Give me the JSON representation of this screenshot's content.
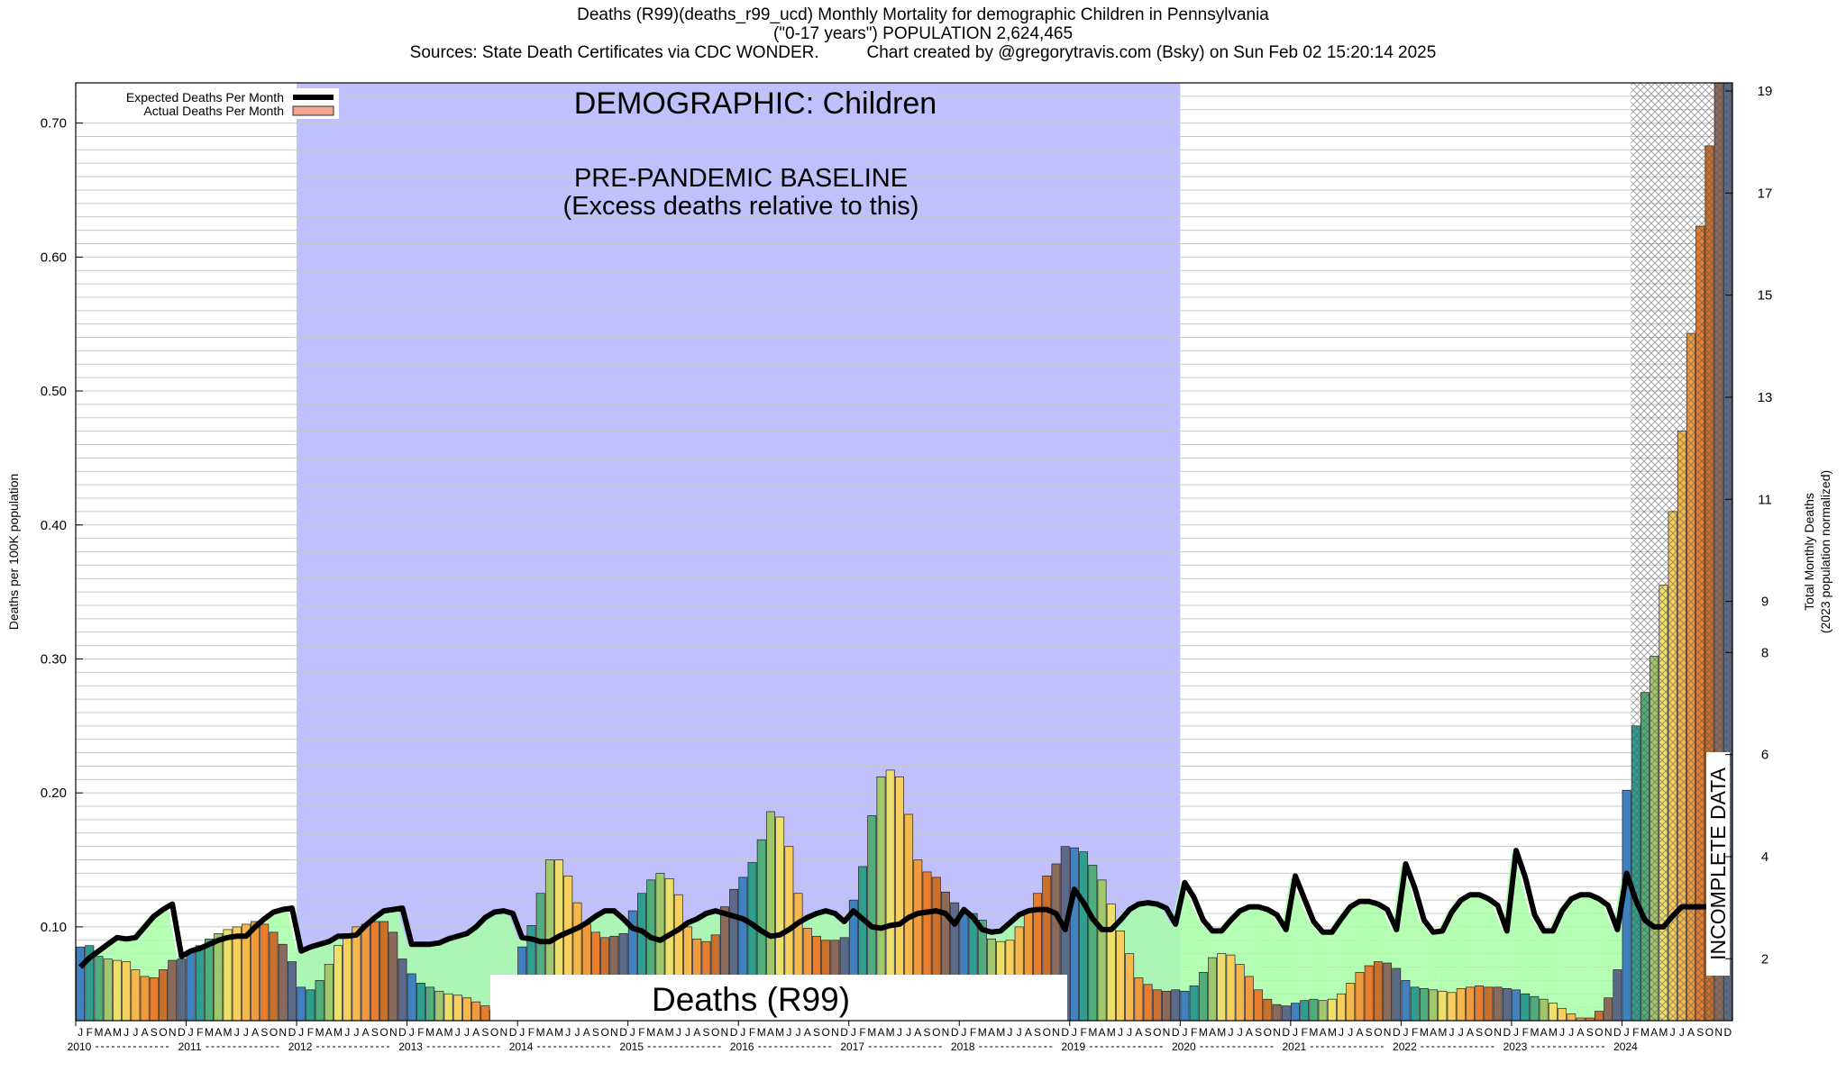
{
  "header": {
    "line1": "Deaths (R99)(deaths_r99_ucd) Monthly Mortality for demographic Children in Pennsylvania",
    "line2": "(\"0-17 years\") POPULATION 2,624,465",
    "line3_left": "Sources: State Death Certificates via CDC WONDER.",
    "line3_right": "Chart created by @gregorytravis.com (Bsky) on Sun Feb 02 15:20:14 2025"
  },
  "chart_data": {
    "type": "bar",
    "ylabel": "Deaths per 100K population",
    "y2label_line1": "Total Monthly Deaths",
    "y2label_line2": "(2023 population normalized)",
    "ylim": [
      0.03,
      0.73
    ],
    "yticks": [
      "0.10",
      "0.20",
      "0.30",
      "0.40",
      "0.50",
      "0.60",
      "0.70"
    ],
    "y2ticks": [
      "2",
      "4",
      "6",
      "8",
      "9",
      "11",
      "13",
      "15",
      "17",
      "19"
    ],
    "years": [
      "2010",
      "2011",
      "2012",
      "2013",
      "2014",
      "2015",
      "2016",
      "2017",
      "2018",
      "2019",
      "2020",
      "2021",
      "2022",
      "2023",
      "2024"
    ],
    "month_letters": [
      "J",
      "F",
      "M",
      "A",
      "M",
      "J",
      "J",
      "A",
      "S",
      "O",
      "N",
      "D"
    ],
    "legend": {
      "expected": "Expected Deaths Per Month",
      "actual": "Actual Deaths Per Month"
    },
    "annotations": {
      "demographic": "DEMOGRAPHIC: Children",
      "baseline_line1": "PRE-PANDEMIC BASELINE",
      "baseline_line2": "(Excess deaths relative to this)",
      "cause": "Deaths (R99)",
      "incomplete": "INCOMPLETE DATA"
    },
    "baseline_range": [
      "2012-01",
      "2019-12"
    ],
    "incomplete_from": "2024-02",
    "colors": {
      "baseline_band": "#c0c0ff",
      "excess_fill": "#a8ffa8",
      "deficit_fill": "#ffb3b3",
      "expected_line": "#000000",
      "incomplete_hatch": "#888888",
      "grid": "#c8c8c8",
      "bar_palette": [
        "#3f82bf",
        "#2f9e8f",
        "#4fae7a",
        "#9fc86a",
        "#ece06a",
        "#f6cf5c",
        "#f4b84c",
        "#ef9a3c",
        "#e87d2e",
        "#c8702c",
        "#8a6a5a",
        "#5c6a8a"
      ]
    },
    "series": [
      {
        "name": "Expected Deaths Per Month",
        "values": [
          0.07,
          0.077,
          0.082,
          0.087,
          0.092,
          0.091,
          0.092,
          0.1,
          0.108,
          0.113,
          0.117,
          0.078,
          0.082,
          0.084,
          0.087,
          0.09,
          0.092,
          0.093,
          0.093,
          0.1,
          0.106,
          0.111,
          0.113,
          0.114,
          0.082,
          0.085,
          0.087,
          0.089,
          0.093,
          0.093,
          0.094,
          0.101,
          0.107,
          0.112,
          0.113,
          0.114,
          0.087,
          0.087,
          0.087,
          0.088,
          0.091,
          0.093,
          0.095,
          0.1,
          0.107,
          0.111,
          0.112,
          0.11,
          0.092,
          0.091,
          0.089,
          0.089,
          0.093,
          0.096,
          0.099,
          0.103,
          0.108,
          0.112,
          0.112,
          0.106,
          0.099,
          0.097,
          0.092,
          0.09,
          0.094,
          0.098,
          0.103,
          0.106,
          0.11,
          0.112,
          0.11,
          0.108,
          0.106,
          0.102,
          0.097,
          0.093,
          0.094,
          0.098,
          0.103,
          0.107,
          0.11,
          0.112,
          0.11,
          0.104,
          0.112,
          0.106,
          0.1,
          0.099,
          0.101,
          0.102,
          0.107,
          0.11,
          0.111,
          0.112,
          0.11,
          0.102,
          0.113,
          0.107,
          0.098,
          0.096,
          0.097,
          0.103,
          0.109,
          0.112,
          0.113,
          0.113,
          0.11,
          0.098,
          0.128,
          0.118,
          0.106,
          0.098,
          0.098,
          0.105,
          0.113,
          0.117,
          0.118,
          0.117,
          0.114,
          0.102,
          0.133,
          0.122,
          0.105,
          0.097,
          0.097,
          0.105,
          0.112,
          0.115,
          0.115,
          0.113,
          0.109,
          0.098,
          0.138,
          0.121,
          0.104,
          0.096,
          0.096,
          0.106,
          0.115,
          0.119,
          0.119,
          0.117,
          0.113,
          0.098,
          0.147,
          0.129,
          0.105,
          0.096,
          0.097,
          0.111,
          0.12,
          0.124,
          0.124,
          0.121,
          0.116,
          0.097,
          0.157,
          0.137,
          0.109,
          0.097,
          0.097,
          0.112,
          0.121,
          0.124,
          0.124,
          0.121,
          0.116,
          0.098,
          0.14,
          0.12,
          0.105,
          0.1,
          0.1,
          0.108,
          0.115,
          0.115,
          0.115,
          0.115,
          0.115,
          0.115
        ]
      },
      {
        "name": "Actual Deaths Per Month",
        "values": [
          0.085,
          0.086,
          0.078,
          0.076,
          0.075,
          0.074,
          0.068,
          0.063,
          0.062,
          0.068,
          0.075,
          0.076,
          0.082,
          0.086,
          0.091,
          0.095,
          0.098,
          0.1,
          0.102,
          0.104,
          0.102,
          0.096,
          0.087,
          0.074,
          0.055,
          0.053,
          0.06,
          0.072,
          0.086,
          0.095,
          0.1,
          0.102,
          0.104,
          0.104,
          0.096,
          0.076,
          0.065,
          0.058,
          0.055,
          0.052,
          0.05,
          0.049,
          0.047,
          0.044,
          0.041,
          0.038,
          0.037,
          0.037,
          0.085,
          0.101,
          0.125,
          0.15,
          0.15,
          0.138,
          0.118,
          0.102,
          0.096,
          0.092,
          0.093,
          0.095,
          0.112,
          0.125,
          0.135,
          0.14,
          0.136,
          0.124,
          0.1,
          0.091,
          0.089,
          0.094,
          0.115,
          0.128,
          0.137,
          0.148,
          0.165,
          0.186,
          0.182,
          0.16,
          0.125,
          0.099,
          0.093,
          0.09,
          0.09,
          0.092,
          0.12,
          0.145,
          0.183,
          0.212,
          0.217,
          0.212,
          0.184,
          0.15,
          0.141,
          0.137,
          0.126,
          0.118,
          0.11,
          0.11,
          0.105,
          0.091,
          0.089,
          0.09,
          0.1,
          0.112,
          0.125,
          0.138,
          0.147,
          0.16,
          0.159,
          0.156,
          0.146,
          0.135,
          0.117,
          0.097,
          0.08,
          0.062,
          0.057,
          0.053,
          0.052,
          0.053,
          0.052,
          0.056,
          0.066,
          0.077,
          0.08,
          0.079,
          0.072,
          0.063,
          0.053,
          0.046,
          0.042,
          0.041,
          0.043,
          0.045,
          0.046,
          0.045,
          0.046,
          0.05,
          0.058,
          0.066,
          0.071,
          0.074,
          0.073,
          0.069,
          0.06,
          0.055,
          0.054,
          0.053,
          0.052,
          0.051,
          0.054,
          0.055,
          0.056,
          0.055,
          0.055,
          0.054,
          0.053,
          0.05,
          0.048,
          0.046,
          0.043,
          0.039,
          0.035,
          0.032,
          0.032,
          0.037,
          0.047,
          0.068,
          0.202,
          0.25,
          0.275,
          0.302,
          0.355,
          0.41,
          0.47,
          0.543,
          0.623,
          0.683,
          0.73,
          0.73
        ]
      }
    ]
  }
}
